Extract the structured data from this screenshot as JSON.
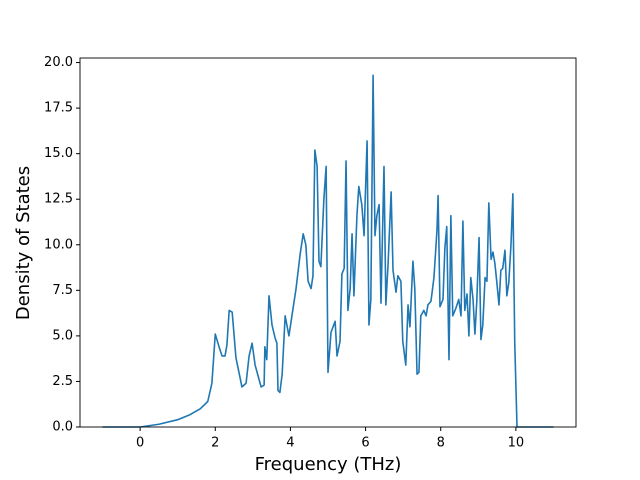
{
  "chart_data": {
    "type": "line",
    "xlabel": "Frequency (THz)",
    "ylabel": "Density of States",
    "color": "#1f77b4",
    "x": [
      -1,
      0,
      0.5,
      1,
      1.3,
      1.6,
      1.8,
      1.91,
      2.0,
      2.1,
      2.18,
      2.26,
      2.31,
      2.37,
      2.45,
      2.55,
      2.63,
      2.71,
      2.82,
      2.9,
      2.98,
      3.06,
      3.14,
      3.22,
      3.3,
      3.32,
      3.37,
      3.43,
      3.51,
      3.59,
      3.64,
      3.67,
      3.72,
      3.78,
      3.86,
      3.96,
      4.04,
      4.15,
      4.26,
      4.34,
      4.41,
      4.47,
      4.55,
      4.6,
      4.65,
      4.71,
      4.76,
      4.81,
      4.89,
      4.95,
      5.0,
      5.08,
      5.19,
      5.24,
      5.32,
      5.37,
      5.43,
      5.48,
      5.53,
      5.59,
      5.64,
      5.69,
      5.77,
      5.82,
      5.9,
      5.96,
      6.04,
      6.09,
      6.14,
      6.2,
      6.25,
      6.3,
      6.36,
      6.41,
      6.49,
      6.54,
      6.6,
      6.68,
      6.73,
      6.81,
      6.86,
      6.94,
      6.99,
      7.07,
      7.13,
      7.18,
      7.26,
      7.31,
      7.37,
      7.42,
      7.47,
      7.55,
      7.61,
      7.66,
      7.74,
      7.82,
      7.9,
      7.93,
      7.98,
      8.06,
      8.11,
      8.16,
      8.22,
      8.27,
      8.32,
      8.4,
      8.48,
      8.54,
      8.59,
      8.64,
      8.7,
      8.75,
      8.8,
      8.86,
      8.91,
      8.96,
      9.02,
      9.07,
      9.12,
      9.18,
      9.23,
      9.28,
      9.34,
      9.39,
      9.44,
      9.49,
      9.55,
      9.6,
      9.65,
      9.71,
      9.76,
      9.81,
      9.87,
      9.92,
      9.97,
      10.03,
      11
    ],
    "values": [
      0,
      0,
      0.15,
      0.4,
      0.65,
      1.0,
      1.4,
      2.4,
      5.1,
      4.4,
      3.9,
      3.9,
      4.5,
      6.4,
      6.3,
      3.8,
      3.0,
      2.2,
      2.4,
      3.9,
      4.6,
      3.4,
      2.8,
      2.2,
      2.3,
      4.4,
      3.7,
      7.2,
      5.6,
      4.9,
      4.6,
      2.0,
      1.9,
      2.9,
      6.1,
      5.0,
      6.1,
      7.6,
      9.5,
      10.6,
      10.0,
      8.0,
      7.6,
      8.3,
      15.2,
      14.3,
      9.1,
      8.8,
      12.5,
      14.3,
      3.0,
      5.2,
      5.8,
      3.9,
      4.7,
      8.4,
      8.7,
      14.6,
      6.4,
      7.6,
      10.6,
      7.2,
      11.6,
      13.2,
      12.2,
      10.5,
      15.7,
      5.6,
      7.0,
      19.3,
      10.5,
      11.6,
      12.2,
      6.8,
      14.3,
      6.7,
      9.0,
      12.9,
      8.6,
      7.4,
      8.3,
      8.0,
      4.7,
      3.4,
      6.7,
      5.5,
      9.1,
      7.6,
      2.9,
      3.0,
      6.1,
      6.4,
      6.1,
      6.7,
      6.9,
      8.2,
      10.8,
      12.7,
      6.6,
      7.0,
      9.8,
      11.0,
      3.7,
      11.6,
      6.1,
      6.5,
      7.0,
      6.1,
      11.3,
      6.4,
      7.3,
      5.0,
      8.2,
      7.0,
      5.1,
      6.9,
      10.4,
      4.8,
      5.6,
      8.2,
      8.0,
      12.3,
      9.2,
      9.6,
      9.0,
      8.0,
      6.7,
      8.6,
      8.7,
      9.7,
      7.2,
      7.9,
      10.0,
      12.8,
      4.6,
      0,
      0
    ],
    "xlim": [
      -1.6,
      11.6
    ],
    "ylim": [
      0,
      20.25
    ],
    "xticks": [
      0,
      2,
      4,
      6,
      8,
      10
    ],
    "yticks": [
      {
        "value": 0,
        "label": "0.0"
      },
      {
        "value": 2.5,
        "label": "2.5"
      },
      {
        "value": 5,
        "label": "5.0"
      },
      {
        "value": 7.5,
        "label": "7.5"
      },
      {
        "value": 10,
        "label": "10.0"
      },
      {
        "value": 12.5,
        "label": "12.5"
      },
      {
        "value": 15,
        "label": "15.0"
      },
      {
        "value": 17.5,
        "label": "17.5"
      },
      {
        "value": 20,
        "label": "20.0"
      }
    ]
  }
}
